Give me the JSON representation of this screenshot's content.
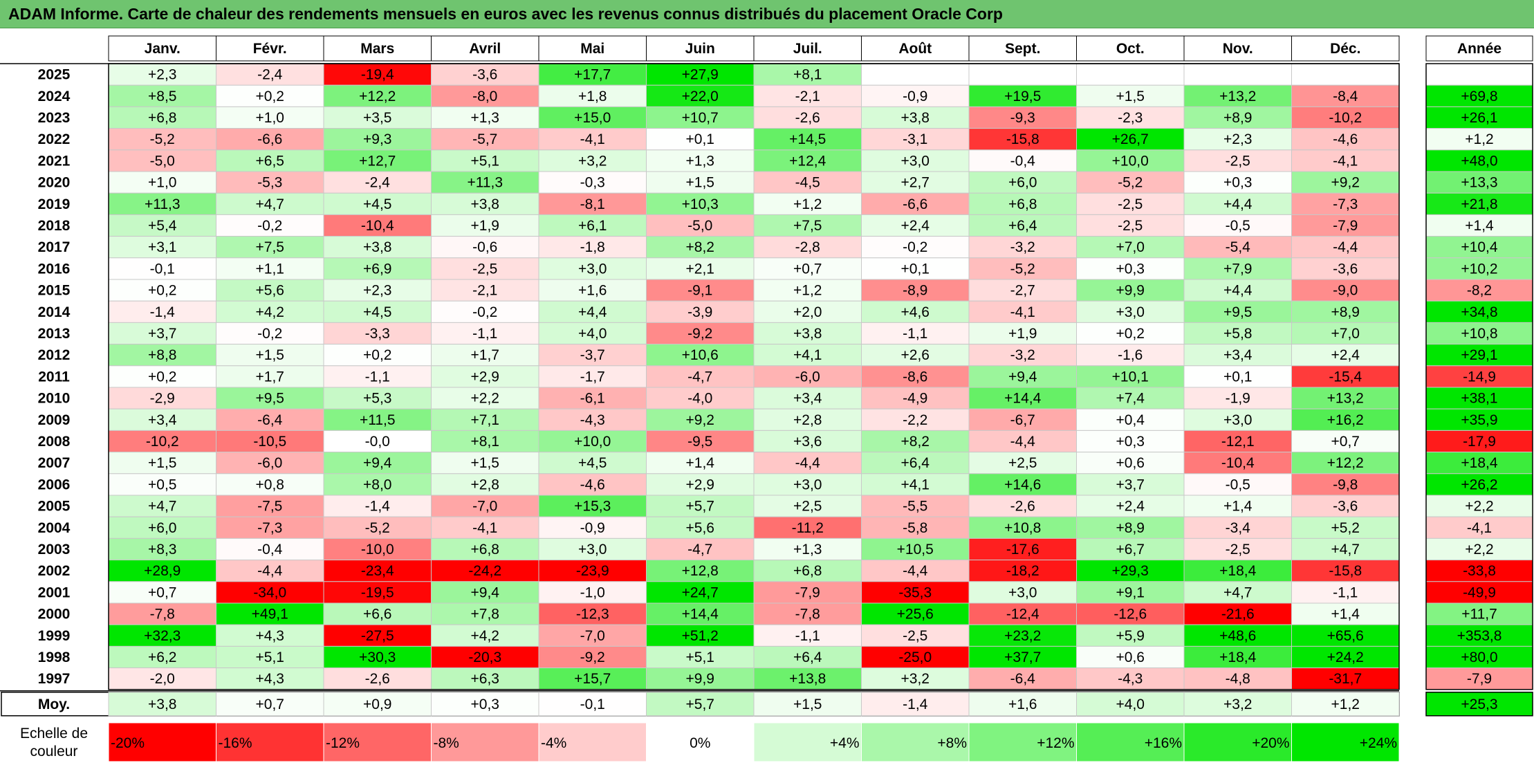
{
  "title": "ADAM Informe. Carte de chaleur des rendements mensuels en euros avec les revenus connus distribués du placement Oracle Corp",
  "colors": {
    "title_bg": "#6fc46f",
    "positive": "#00e600",
    "negative": "#ff0000",
    "neutral": "#ffffff"
  },
  "chart_data": {
    "type": "heatmap",
    "title": "ADAM Informe. Carte de chaleur des rendements mensuels en euros avec les revenus connus distribués du placement Oracle Corp",
    "months": [
      "Janv.",
      "Févr.",
      "Mars",
      "Avril",
      "Mai",
      "Juin",
      "Juil.",
      "Août",
      "Sept.",
      "Oct.",
      "Nov.",
      "Déc."
    ],
    "year_header": "Année",
    "rows": [
      {
        "year": "2025",
        "values": [
          "+2,3",
          "-2,4",
          "-19,4",
          "-3,6",
          "+17,7",
          "+27,9",
          "+8,1",
          "",
          "",
          "",
          "",
          ""
        ],
        "annual": ""
      },
      {
        "year": "2024",
        "values": [
          "+8,5",
          "+0,2",
          "+12,2",
          "-8,0",
          "+1,8",
          "+22,0",
          "-2,1",
          "-0,9",
          "+19,5",
          "+1,5",
          "+13,2",
          "-8,4"
        ],
        "annual": "+69,8"
      },
      {
        "year": "2023",
        "values": [
          "+6,8",
          "+1,0",
          "+3,5",
          "+1,3",
          "+15,0",
          "+10,7",
          "-2,6",
          "+3,8",
          "-9,3",
          "-2,3",
          "+8,9",
          "-10,2"
        ],
        "annual": "+26,1"
      },
      {
        "year": "2022",
        "values": [
          "-5,2",
          "-6,6",
          "+9,3",
          "-5,7",
          "-4,1",
          "+0,1",
          "+14,5",
          "-3,1",
          "-15,8",
          "+26,7",
          "+2,3",
          "-4,6"
        ],
        "annual": "+1,2"
      },
      {
        "year": "2021",
        "values": [
          "-5,0",
          "+6,5",
          "+12,7",
          "+5,1",
          "+3,2",
          "+1,3",
          "+12,4",
          "+3,0",
          "-0,4",
          "+10,0",
          "-2,5",
          "-4,1"
        ],
        "annual": "+48,0"
      },
      {
        "year": "2020",
        "values": [
          "+1,0",
          "-5,3",
          "-2,4",
          "+11,3",
          "-0,3",
          "+1,5",
          "-4,5",
          "+2,7",
          "+6,0",
          "-5,2",
          "+0,3",
          "+9,2"
        ],
        "annual": "+13,3"
      },
      {
        "year": "2019",
        "values": [
          "+11,3",
          "+4,7",
          "+4,5",
          "+3,8",
          "-8,1",
          "+10,3",
          "+1,2",
          "-6,6",
          "+6,8",
          "-2,5",
          "+4,4",
          "-7,3"
        ],
        "annual": "+21,8"
      },
      {
        "year": "2018",
        "values": [
          "+5,4",
          "-0,2",
          "-10,4",
          "+1,9",
          "+6,1",
          "-5,0",
          "+7,5",
          "+2,4",
          "+6,4",
          "-2,5",
          "-0,5",
          "-7,9"
        ],
        "annual": "+1,4"
      },
      {
        "year": "2017",
        "values": [
          "+3,1",
          "+7,5",
          "+3,8",
          "-0,6",
          "-1,8",
          "+8,2",
          "-2,8",
          "-0,2",
          "-3,2",
          "+7,0",
          "-5,4",
          "-4,4"
        ],
        "annual": "+10,4"
      },
      {
        "year": "2016",
        "values": [
          "-0,1",
          "+1,1",
          "+6,9",
          "-2,5",
          "+3,0",
          "+2,1",
          "+0,7",
          "+0,1",
          "-5,2",
          "+0,3",
          "+7,9",
          "-3,6"
        ],
        "annual": "+10,2"
      },
      {
        "year": "2015",
        "values": [
          "+0,2",
          "+5,6",
          "+2,3",
          "-2,1",
          "+1,6",
          "-9,1",
          "+1,2",
          "-8,9",
          "-2,7",
          "+9,9",
          "+4,4",
          "-9,0"
        ],
        "annual": "-8,2"
      },
      {
        "year": "2014",
        "values": [
          "-1,4",
          "+4,2",
          "+4,5",
          "-0,2",
          "+4,4",
          "-3,9",
          "+2,0",
          "+4,6",
          "-4,1",
          "+3,0",
          "+9,5",
          "+8,9"
        ],
        "annual": "+34,8"
      },
      {
        "year": "2013",
        "values": [
          "+3,7",
          "-0,2",
          "-3,3",
          "-1,1",
          "+4,0",
          "-9,2",
          "+3,8",
          "-1,1",
          "+1,9",
          "+0,2",
          "+5,8",
          "+7,0"
        ],
        "annual": "+10,8"
      },
      {
        "year": "2012",
        "values": [
          "+8,8",
          "+1,5",
          "+0,2",
          "+1,7",
          "-3,7",
          "+10,6",
          "+4,1",
          "+2,6",
          "-3,2",
          "-1,6",
          "+3,4",
          "+2,4"
        ],
        "annual": "+29,1"
      },
      {
        "year": "2011",
        "values": [
          "+0,2",
          "+1,7",
          "-1,1",
          "+2,9",
          "-1,7",
          "-4,7",
          "-6,0",
          "-8,6",
          "+9,4",
          "+10,1",
          "+0,1",
          "-15,4"
        ],
        "annual": "-14,9"
      },
      {
        "year": "2010",
        "values": [
          "-2,9",
          "+9,5",
          "+5,3",
          "+2,2",
          "-6,1",
          "-4,0",
          "+3,4",
          "-4,9",
          "+14,4",
          "+7,4",
          "-1,9",
          "+13,2"
        ],
        "annual": "+38,1"
      },
      {
        "year": "2009",
        "values": [
          "+3,4",
          "-6,4",
          "+11,5",
          "+7,1",
          "-4,3",
          "+9,2",
          "+2,8",
          "-2,2",
          "-6,7",
          "+0,4",
          "+3,0",
          "+16,2"
        ],
        "annual": "+35,9"
      },
      {
        "year": "2008",
        "values": [
          "-10,2",
          "-10,5",
          "-0,0",
          "+8,1",
          "+10,0",
          "-9,5",
          "+3,6",
          "+8,2",
          "-4,4",
          "+0,3",
          "-12,1",
          "+0,7"
        ],
        "annual": "-17,9"
      },
      {
        "year": "2007",
        "values": [
          "+1,5",
          "-6,0",
          "+9,4",
          "+1,5",
          "+4,5",
          "+1,4",
          "-4,4",
          "+6,4",
          "+2,5",
          "+0,6",
          "-10,4",
          "+12,2"
        ],
        "annual": "+18,4"
      },
      {
        "year": "2006",
        "values": [
          "+0,5",
          "+0,8",
          "+8,0",
          "+2,8",
          "-4,6",
          "+2,9",
          "+3,0",
          "+4,1",
          "+14,6",
          "+3,7",
          "-0,5",
          "-9,8"
        ],
        "annual": "+26,2"
      },
      {
        "year": "2005",
        "values": [
          "+4,7",
          "-7,5",
          "-1,4",
          "-7,0",
          "+15,3",
          "+5,7",
          "+2,5",
          "-5,5",
          "-2,6",
          "+2,4",
          "+1,4",
          "-3,6"
        ],
        "annual": "+2,2"
      },
      {
        "year": "2004",
        "values": [
          "+6,0",
          "-7,3",
          "-5,2",
          "-4,1",
          "-0,9",
          "+5,6",
          "-11,2",
          "-5,8",
          "+10,8",
          "+8,9",
          "-3,4",
          "+5,2"
        ],
        "annual": "-4,1"
      },
      {
        "year": "2003",
        "values": [
          "+8,3",
          "-0,4",
          "-10,0",
          "+6,8",
          "+3,0",
          "-4,7",
          "+1,3",
          "+10,5",
          "-17,6",
          "+6,7",
          "-2,5",
          "+4,7"
        ],
        "annual": "+2,2"
      },
      {
        "year": "2002",
        "values": [
          "+28,9",
          "-4,4",
          "-23,4",
          "-24,2",
          "-23,9",
          "+12,8",
          "+6,8",
          "-4,4",
          "-18,2",
          "+29,3",
          "+18,4",
          "-15,8"
        ],
        "annual": "-33,8"
      },
      {
        "year": "2001",
        "values": [
          "+0,7",
          "-34,0",
          "-19,5",
          "+9,4",
          "-1,0",
          "+24,7",
          "-7,9",
          "-35,3",
          "+3,0",
          "+9,1",
          "+4,7",
          "-1,1"
        ],
        "annual": "-49,9"
      },
      {
        "year": "2000",
        "values": [
          "-7,8",
          "+49,1",
          "+6,6",
          "+7,8",
          "-12,3",
          "+14,4",
          "-7,8",
          "+25,6",
          "-12,4",
          "-12,6",
          "-21,6",
          "+1,4"
        ],
        "annual": "+11,7"
      },
      {
        "year": "1999",
        "values": [
          "+32,3",
          "+4,3",
          "-27,5",
          "+4,2",
          "-7,0",
          "+51,2",
          "-1,1",
          "-2,5",
          "+23,2",
          "+5,9",
          "+48,6",
          "+65,6"
        ],
        "annual": "+353,8"
      },
      {
        "year": "1998",
        "values": [
          "+6,2",
          "+5,1",
          "+30,3",
          "-20,3",
          "-9,2",
          "+5,1",
          "+6,4",
          "-25,0",
          "+37,7",
          "+0,6",
          "+18,4",
          "+24,2"
        ],
        "annual": "+80,0"
      },
      {
        "year": "1997",
        "values": [
          "-2,0",
          "+4,3",
          "-2,6",
          "+6,3",
          "+15,7",
          "+9,9",
          "+13,8",
          "+3,2",
          "-6,4",
          "-4,3",
          "-4,8",
          "-31,7"
        ],
        "annual": "-7,9"
      }
    ],
    "average": {
      "label": "Moy.",
      "values": [
        "+3,8",
        "+0,7",
        "+0,9",
        "+0,3",
        "-0,1",
        "+5,7",
        "+1,5",
        "-1,4",
        "+1,6",
        "+4,0",
        "+3,2",
        "+1,2"
      ],
      "annual": "+25,3"
    },
    "color_scale": {
      "label_line1": "Echelle de",
      "label_line2": "couleur",
      "stops": [
        "-20%",
        "-16%",
        "-12%",
        "-8%",
        "-4%",
        "0%",
        "+4%",
        "+8%",
        "+12%",
        "+16%",
        "+20%",
        "+24%"
      ]
    }
  }
}
